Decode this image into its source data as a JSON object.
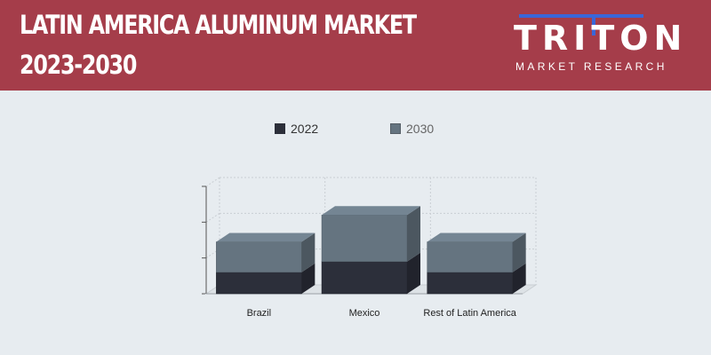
{
  "header": {
    "title_line1": "LATIN AMERICA ALUMINUM MARKET",
    "title_line2": "2023-2030"
  },
  "logo": {
    "word": "TRITON",
    "subtitle": "MARKET RESEARCH"
  },
  "colors": {
    "header_bg": "#a53d4a",
    "series_2022": "#2c2f3a",
    "series_2030": "#657480",
    "background": "#e7ecf0"
  },
  "chart_data": {
    "type": "bar",
    "stacked": true,
    "three_d": true,
    "categories": [
      "Brazil",
      "Mexico",
      "Rest of Latin America"
    ],
    "series": [
      {
        "name": "2022",
        "values": [
          0.6,
          0.9,
          0.6
        ]
      },
      {
        "name": "2030",
        "values": [
          0.85,
          1.3,
          0.85
        ]
      }
    ],
    "ylim": [
      0,
      3
    ],
    "y_ticks": 4,
    "grid": true,
    "legend_position": "top-center",
    "axis_labels_visible": false
  }
}
